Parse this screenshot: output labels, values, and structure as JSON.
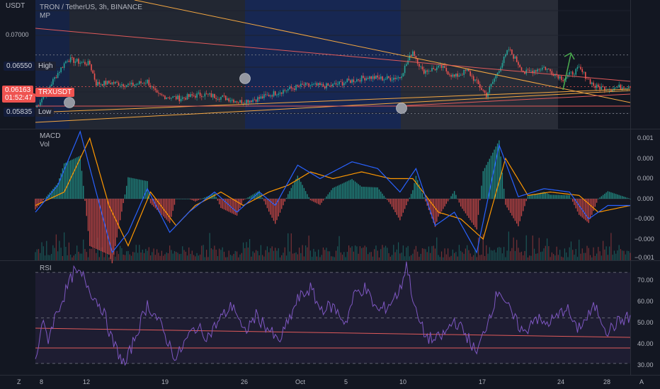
{
  "header": {
    "currency": "USDT",
    "title": "TRON / TetherUS, 3h, BINANCE",
    "indicator": "MP"
  },
  "price_pane": {
    "level_high_label": "High",
    "level_low_label": "Low",
    "high_value": "0.06550",
    "low_value": "0.05835",
    "current_value": "0.06163",
    "countdown": "01:52:47",
    "symbol_tag": "TRXUSDT",
    "axis_top_tick": "0.07000"
  },
  "macd_pane": {
    "title": "MACD",
    "subtitle": "Vol",
    "ticks": [
      "0.001",
      "0.000",
      "0.000",
      "0.000",
      "−0.000",
      "−0.000",
      "−0.001"
    ]
  },
  "rsi_pane": {
    "title": "RSI",
    "ticks": [
      "70.00",
      "60.00",
      "50.00",
      "40.00",
      "30.00"
    ]
  },
  "time_axis": {
    "labels": [
      "8",
      "12",
      "19",
      "26",
      "Oct",
      "5",
      "10",
      "17",
      "24",
      "28"
    ]
  },
  "corner_icons": {
    "left": "Z",
    "right": "A"
  },
  "colors": {
    "background": "#131722",
    "up": "#26a69a",
    "down": "#ef5350",
    "macd": "#2962ff",
    "signal": "#ff9800",
    "rsi": "#7e57c2",
    "trendline_orange": "#f4a742",
    "trendline_red": "#e05a5a",
    "arrow": "#4caf50"
  },
  "chart_data": [
    {
      "type": "candlestick",
      "title": "TRON / TetherUS, 3h, BINANCE",
      "ylabel": "USDT",
      "x_labels": [
        "8",
        "12",
        "19",
        "26",
        "Oct",
        "5",
        "10",
        "17",
        "24",
        "28"
      ],
      "ylim": [
        0.0565,
        0.0722
      ],
      "close_path": [
        [
          0,
          0.059
        ],
        [
          6,
          0.0608
        ],
        [
          14,
          0.0633
        ],
        [
          20,
          0.065
        ],
        [
          28,
          0.0646
        ],
        [
          34,
          0.0644
        ],
        [
          38,
          0.062
        ],
        [
          48,
          0.0621
        ],
        [
          60,
          0.0618
        ],
        [
          70,
          0.0623
        ],
        [
          76,
          0.0606
        ],
        [
          90,
          0.0602
        ],
        [
          104,
          0.0607
        ],
        [
          118,
          0.0603
        ],
        [
          128,
          0.0598
        ],
        [
          140,
          0.0602
        ],
        [
          152,
          0.061
        ],
        [
          168,
          0.0618
        ],
        [
          184,
          0.0617
        ],
        [
          196,
          0.0623
        ],
        [
          208,
          0.0628
        ],
        [
          218,
          0.0626
        ],
        [
          228,
          0.0628
        ],
        [
          236,
          0.066
        ],
        [
          242,
          0.0635
        ],
        [
          254,
          0.064
        ],
        [
          262,
          0.0628
        ],
        [
          270,
          0.0636
        ],
        [
          282,
          0.0606
        ],
        [
          288,
          0.063
        ],
        [
          296,
          0.0662
        ],
        [
          306,
          0.0633
        ],
        [
          318,
          0.064
        ],
        [
          330,
          0.0626
        ],
        [
          340,
          0.0638
        ],
        [
          350,
          0.0616
        ],
        [
          360,
          0.0614
        ],
        [
          372,
          0.0618
        ]
      ],
      "levels": {
        "high": 0.0655,
        "low": 0.05835,
        "last": 0.06163
      }
    },
    {
      "type": "line",
      "title": "MACD",
      "series": [
        {
          "name": "MACD",
          "points": [
            [
              0,
              -0.0002
            ],
            [
              14,
              0.0002
            ],
            [
              28,
              0.001
            ],
            [
              38,
              0.0001
            ],
            [
              48,
              -0.0008
            ],
            [
              58,
              -0.0005
            ],
            [
              70,
              0.00015
            ],
            [
              84,
              -0.0005
            ],
            [
              96,
              -0.0002
            ],
            [
              112,
              0.0001
            ],
            [
              126,
              -0.0002
            ],
            [
              140,
              0.0001
            ],
            [
              150,
              -0.0001
            ],
            [
              164,
              0.0005
            ],
            [
              178,
              0.0003
            ],
            [
              198,
              0.00055
            ],
            [
              214,
              0.00045
            ],
            [
              228,
              0.0001
            ],
            [
              238,
              0.00045
            ],
            [
              250,
              -0.0004
            ],
            [
              262,
              -0.0002
            ],
            [
              276,
              -0.0008
            ],
            [
              290,
              0.0008
            ],
            [
              302,
              3e-05
            ],
            [
              318,
              0.00015
            ],
            [
              334,
              0.0001
            ],
            [
              346,
              -0.0003
            ],
            [
              358,
              -0.0001
            ],
            [
              372,
              -0.0001
            ]
          ]
        },
        {
          "name": "Signal",
          "points": [
            [
              0,
              -0.0001
            ],
            [
              18,
              0.0001
            ],
            [
              34,
              0.0009
            ],
            [
              46,
              -0.0001
            ],
            [
              58,
              -0.0007
            ],
            [
              72,
              0.0001
            ],
            [
              88,
              -0.0004
            ],
            [
              100,
              -0.0001
            ],
            [
              116,
              0.0001
            ],
            [
              130,
              -0.0001
            ],
            [
              146,
              0.0001
            ],
            [
              158,
              0.0002
            ],
            [
              172,
              0.0004
            ],
            [
              186,
              0.0003
            ],
            [
              204,
              0.0004
            ],
            [
              222,
              0.0003
            ],
            [
              236,
              0.0003
            ],
            [
              252,
              -0.0002
            ],
            [
              266,
              -0.0003
            ],
            [
              280,
              -0.0006
            ],
            [
              294,
              0.0006
            ],
            [
              308,
              5e-05
            ],
            [
              322,
              0.0001
            ],
            [
              340,
              5e-05
            ],
            [
              352,
              -0.0002
            ],
            [
              372,
              -0.0001
            ]
          ]
        }
      ]
    },
    {
      "type": "line",
      "title": "RSI",
      "ylim": [
        25,
        75
      ],
      "series": [
        {
          "name": "RSI",
          "points": [
            [
              0,
              30
            ],
            [
              4,
              48
            ],
            [
              8,
              41
            ],
            [
              12,
              50
            ],
            [
              18,
              60
            ],
            [
              24,
              70
            ],
            [
              30,
              68
            ],
            [
              36,
              60
            ],
            [
              42,
              54
            ],
            [
              48,
              40
            ],
            [
              56,
              29
            ],
            [
              62,
              41
            ],
            [
              70,
              56
            ],
            [
              76,
              50
            ],
            [
              82,
              41
            ],
            [
              88,
              32
            ],
            [
              94,
              40
            ],
            [
              100,
              46
            ],
            [
              108,
              42
            ],
            [
              116,
              50
            ],
            [
              124,
              56
            ],
            [
              130,
              43
            ],
            [
              138,
              51
            ],
            [
              146,
              45
            ],
            [
              152,
              39
            ],
            [
              158,
              48
            ],
            [
              164,
              58
            ],
            [
              172,
              63
            ],
            [
              178,
              54
            ],
            [
              186,
              55
            ],
            [
              194,
              48
            ],
            [
              200,
              61
            ],
            [
              206,
              63
            ],
            [
              214,
              53
            ],
            [
              220,
              55
            ],
            [
              228,
              62
            ],
            [
              232,
              74
            ],
            [
              238,
              52
            ],
            [
              244,
              42
            ],
            [
              250,
              40
            ],
            [
              256,
              43
            ],
            [
              262,
              49
            ],
            [
              270,
              42
            ],
            [
              276,
              34
            ],
            [
              282,
              47
            ],
            [
              290,
              63
            ],
            [
              298,
              51
            ],
            [
              306,
              43
            ],
            [
              312,
              51
            ],
            [
              318,
              47
            ],
            [
              326,
              50
            ],
            [
              332,
              55
            ],
            [
              338,
              45
            ],
            [
              344,
              49
            ],
            [
              350,
              55
            ],
            [
              358,
              44
            ],
            [
              364,
              48
            ],
            [
              370,
              50
            ]
          ]
        }
      ],
      "levels": [
        70,
        50,
        30
      ]
    }
  ]
}
